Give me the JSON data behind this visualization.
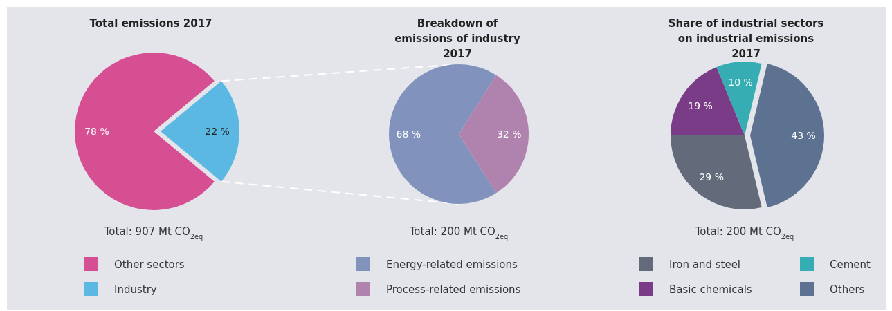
{
  "chart_data": [
    {
      "type": "pie",
      "title": "Total emissions 2017",
      "subtitle": "Total: 907 Mt CO$_{2eq}$",
      "categories": [
        "Other sectors",
        "Industry"
      ],
      "values": [
        78,
        22
      ],
      "colors": [
        "#d64f93",
        "#5ab8e2"
      ],
      "value_labels": [
        "78 %",
        "22 %"
      ],
      "legend": "bottom"
    },
    {
      "type": "pie",
      "title": "Breakdown of emissions of industry 2017",
      "subtitle": "Total: 200 Mt CO$_{2eq}$",
      "categories": [
        "Energy-related emissions",
        "Process-related emissions"
      ],
      "values": [
        68,
        32
      ],
      "colors": [
        "#8193bd",
        "#b083ae"
      ],
      "value_labels": [
        "68 %",
        "32 %"
      ],
      "legend": "bottom"
    },
    {
      "type": "pie",
      "title": "Share of industrial sectors on industrial emissions 2017",
      "subtitle": "Total: 200 Mt CO$_{2eq}$",
      "categories": [
        "Iron and steel",
        "Basic chemicals",
        "Cement",
        "Others"
      ],
      "values": [
        29,
        19,
        10,
        43
      ],
      "colors": [
        "#636a7a",
        "#7a3b87",
        "#35adb3",
        "#5d7290"
      ],
      "value_labels": [
        "29 %",
        "19 %",
        "10 %",
        "43 %"
      ],
      "legend": "bottom"
    }
  ]
}
